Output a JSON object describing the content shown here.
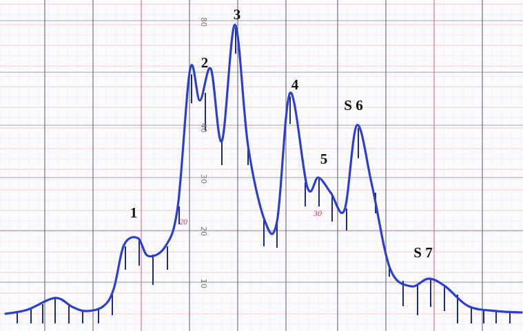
{
  "peak_labels": [
    "1",
    "2",
    "3",
    "4",
    "5",
    "S 6",
    "S 7"
  ],
  "scale_marks": [
    "80",
    "40",
    "30",
    "20",
    "10"
  ],
  "red_marks": [
    "20",
    "30"
  ]
}
